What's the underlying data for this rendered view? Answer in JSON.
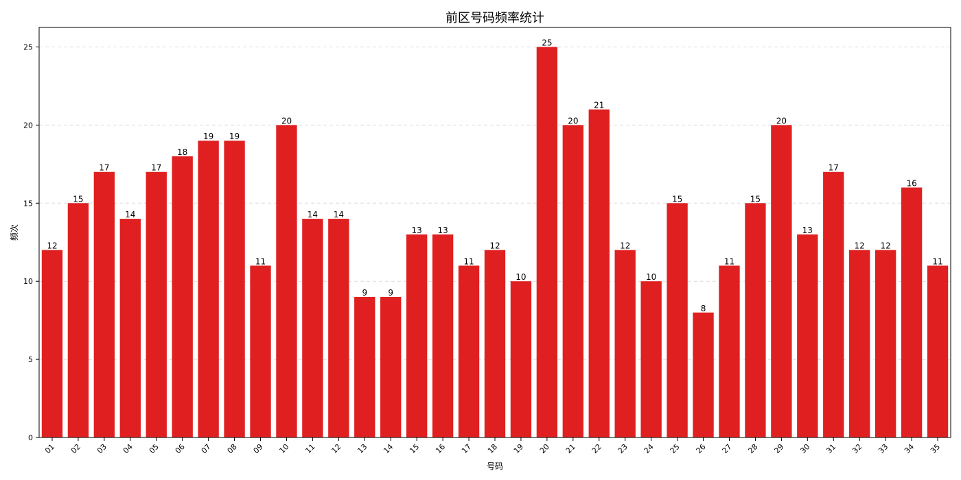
{
  "chart_data": {
    "type": "bar",
    "title": "前区号码频率统计",
    "xlabel": "号码",
    "ylabel": "频次",
    "categories": [
      "01",
      "02",
      "03",
      "04",
      "05",
      "06",
      "07",
      "08",
      "09",
      "10",
      "11",
      "12",
      "13",
      "14",
      "15",
      "16",
      "17",
      "18",
      "19",
      "20",
      "21",
      "22",
      "23",
      "24",
      "25",
      "26",
      "27",
      "28",
      "29",
      "30",
      "31",
      "32",
      "33",
      "34",
      "35"
    ],
    "values": [
      12,
      15,
      17,
      14,
      17,
      18,
      19,
      19,
      11,
      20,
      14,
      14,
      9,
      9,
      13,
      13,
      11,
      12,
      10,
      25,
      20,
      21,
      12,
      10,
      15,
      8,
      11,
      15,
      20,
      13,
      17,
      12,
      12,
      16,
      11
    ],
    "ylim": [
      0,
      26.25
    ],
    "yticks": [
      0,
      5,
      10,
      15,
      20,
      25
    ],
    "grid": "y-dashed",
    "bar_color": "#e02020"
  }
}
